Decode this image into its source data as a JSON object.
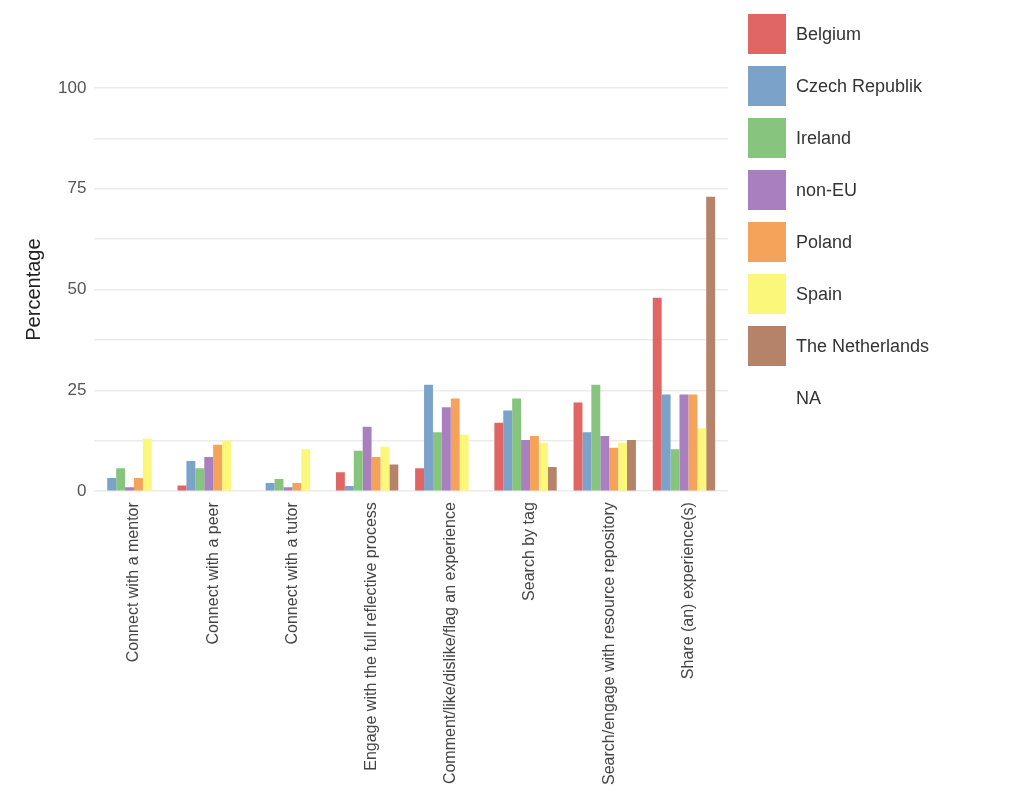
{
  "chart_data": {
    "type": "bar",
    "ylabel": "Percentage",
    "categories": [
      "Connect with a mentor",
      "Connect with a peer",
      "Connect with a tutor",
      "Engage with the full reflective process",
      "Comment/like/dislike/flag an experience",
      "Search by tag",
      "Search/engage with resource repository",
      "Share (an) experience(s)"
    ],
    "series": [
      {
        "name": "Belgium",
        "color": "#e06666",
        "values": [
          0,
          1.4,
          0,
          4.7,
          5.7,
          17,
          22,
          48
        ]
      },
      {
        "name": "Czech Republik",
        "color": "#7ba3c9",
        "values": [
          3.3,
          7.5,
          2,
          1.3,
          26.4,
          20,
          14.6,
          24
        ]
      },
      {
        "name": "Ireland",
        "color": "#87c47d",
        "values": [
          5.7,
          5.7,
          3,
          10,
          14.6,
          23,
          26.4,
          10.4
        ]
      },
      {
        "name": "non-EU",
        "color": "#a97fbf",
        "values": [
          1,
          8.5,
          1,
          16,
          20.8,
          12.7,
          13.7,
          24
        ]
      },
      {
        "name": "Poland",
        "color": "#f5a35a",
        "values": [
          3.3,
          11.5,
          2,
          8.5,
          23,
          13.7,
          10.8,
          24
        ]
      },
      {
        "name": "Spain",
        "color": "#fbf77a",
        "values": [
          13,
          12.5,
          10.4,
          11,
          14,
          12,
          12,
          15.6
        ]
      },
      {
        "name": "The Netherlands",
        "color": "#b5836a",
        "values": [
          0,
          0,
          0,
          6.6,
          0,
          6,
          12.7,
          73
        ]
      },
      {
        "name": "NA",
        "values": [
          null,
          null,
          null,
          null,
          null,
          null,
          null,
          null
        ]
      }
    ],
    "ylim": [
      0,
      100
    ],
    "yticks": [
      0,
      {
        "value": 12.5,
        "label": null
      },
      25,
      {
        "value": 37.5,
        "label": null
      },
      50,
      {
        "value": 62.5,
        "label": null
      },
      75,
      {
        "value": 87.5,
        "label": null
      },
      100
    ],
    "grid": "y",
    "legend": "right"
  }
}
